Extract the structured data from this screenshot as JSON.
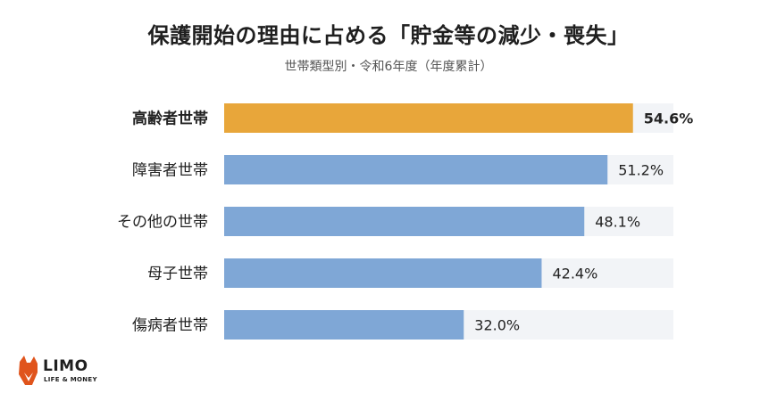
{
  "header": {
    "title": "保護開始の理由に占める「貯金等の減少・喪失」",
    "subtitle": "世帯類型別・令和6年度（年度累計）"
  },
  "brand": {
    "logo_text": "LIMO",
    "logo_tagline": "LIFE & MONEY",
    "logo_color": "#e0541c"
  },
  "chart_data": {
    "type": "bar",
    "orientation": "horizontal",
    "categories": [
      "高齢者世帯",
      "障害者世帯",
      "その他の世帯",
      "母子世帯",
      "傷病者世帯"
    ],
    "values": [
      54.6,
      51.2,
      48.1,
      42.4,
      32.0
    ],
    "value_labels": [
      "54.6%",
      "51.2%",
      "48.1%",
      "42.4%",
      "32.0%"
    ],
    "unit": "%",
    "xlim": [
      0,
      60
    ],
    "highlight_index": 0,
    "colors": {
      "highlight": "#e8a63a",
      "bar": "#7fa7d6",
      "track": "#f2f4f7",
      "label": "#222222",
      "value": "#222222"
    },
    "title": "保護開始の理由に占める「貯金等の減少・喪失」",
    "subtitle": "世帯類型別・令和6年度（年度累計）",
    "grid": false,
    "legend": "none"
  }
}
